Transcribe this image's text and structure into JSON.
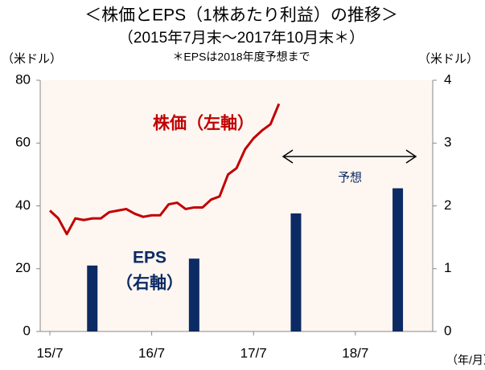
{
  "chart_data": {
    "type": "bar-line",
    "title": "＜株価とEPS（1株あたり利益）の推移＞",
    "subtitle": "（2015年7月末～2017年10月末＊）",
    "note": "＊EPSは2018年度予想まで",
    "ylabel": "（米ドル）",
    "y2label": "（米ドル）",
    "xlabel": "（年/月）",
    "annotations": [
      "株価（左軸）",
      "EPS",
      "（右軸）",
      "予想"
    ],
    "categories": [
      "15/7",
      null,
      null,
      null,
      null,
      null,
      null,
      null,
      null,
      null,
      null,
      null,
      "16/7",
      null,
      null,
      null,
      null,
      null,
      null,
      null,
      null,
      null,
      null,
      null,
      "17/7",
      null,
      null,
      null,
      null,
      null,
      null,
      null,
      null,
      null,
      null,
      null,
      "18/7",
      null,
      null,
      null,
      null,
      null,
      null,
      null,
      null,
      null
    ],
    "series": [
      {
        "name": "株価",
        "type": "line",
        "color": "#c00000",
        "axis": "y",
        "values": [
          38.5,
          36,
          31,
          36,
          35.5,
          36,
          36,
          38,
          38.5,
          39,
          37.5,
          36.5,
          37,
          37,
          40.5,
          41,
          39,
          39.5,
          39.5,
          42,
          43,
          50,
          52,
          58,
          61.5,
          64,
          66,
          72.5,
          null,
          null,
          null,
          null,
          null,
          null,
          null,
          null,
          null,
          null,
          null,
          null,
          null,
          null,
          null,
          null,
          null,
          null
        ]
      },
      {
        "name": "EPS",
        "type": "bar",
        "color": "#0c2a63",
        "axis": "y2",
        "values": [
          null,
          null,
          null,
          null,
          null,
          1.05,
          null,
          null,
          null,
          null,
          null,
          null,
          null,
          null,
          null,
          null,
          null,
          1.16,
          null,
          null,
          null,
          null,
          null,
          null,
          null,
          null,
          null,
          null,
          null,
          1.88,
          null,
          null,
          null,
          null,
          null,
          null,
          null,
          null,
          null,
          null,
          null,
          2.28,
          null,
          null,
          null,
          null
        ]
      }
    ],
    "ylim": [
      0,
      80
    ],
    "yticks": [
      0,
      20,
      40,
      60,
      80
    ],
    "y2lim": [
      0,
      4
    ],
    "y2ticks": [
      0,
      1,
      2,
      3,
      4
    ]
  }
}
